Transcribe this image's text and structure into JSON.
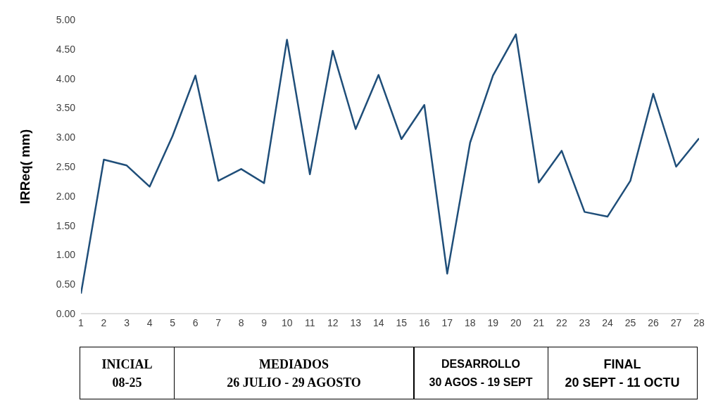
{
  "chart_data": {
    "type": "line",
    "ylabel": "IRReq( mm)",
    "x": [
      1,
      2,
      3,
      4,
      5,
      6,
      7,
      8,
      9,
      10,
      11,
      12,
      13,
      14,
      15,
      16,
      17,
      18,
      19,
      20,
      21,
      22,
      23,
      24,
      25,
      26,
      27,
      28
    ],
    "series": [
      {
        "color": "#1f4e79",
        "values": [
          0.34,
          2.62,
          2.52,
          2.16,
          3.02,
          4.05,
          2.26,
          2.46,
          2.22,
          4.66,
          2.37,
          4.47,
          3.14,
          4.06,
          2.97,
          3.55,
          0.68,
          2.91,
          4.05,
          4.75,
          2.23,
          2.77,
          1.73,
          1.65,
          2.26,
          3.74,
          2.5,
          2.98
        ]
      }
    ],
    "xlim": [
      1,
      28
    ],
    "xticks": [
      1,
      2,
      3,
      4,
      5,
      6,
      7,
      8,
      9,
      10,
      11,
      12,
      13,
      14,
      15,
      16,
      17,
      18,
      19,
      20,
      21,
      22,
      23,
      24,
      25,
      26,
      27,
      28
    ],
    "ylim": [
      0,
      5
    ],
    "yticks": [
      {
        "value": 0,
        "label": "0.00"
      },
      {
        "value": 0.5,
        "label": "0.50"
      },
      {
        "value": 1,
        "label": "1.00"
      },
      {
        "value": 1.5,
        "label": "1.50"
      },
      {
        "value": 2,
        "label": "2.00"
      },
      {
        "value": 2.5,
        "label": "2.50"
      },
      {
        "value": 3,
        "label": "3.00"
      },
      {
        "value": 3.5,
        "label": "3.50"
      },
      {
        "value": 4,
        "label": "4.00"
      },
      {
        "value": 4.5,
        "label": "4.50"
      },
      {
        "value": 5,
        "label": "5.00"
      }
    ],
    "grid": false,
    "legend": false,
    "marker": "none",
    "line_style": "solid",
    "annotations": [
      "INICIAL\n08-25",
      "MEDIADOS\n26 JULIO - 29 AGOSTO",
      "DESARROLLO\n30 AGOS - 19 SEPT",
      "FINAL\n20 SEPT - 11 OCTU"
    ]
  }
}
